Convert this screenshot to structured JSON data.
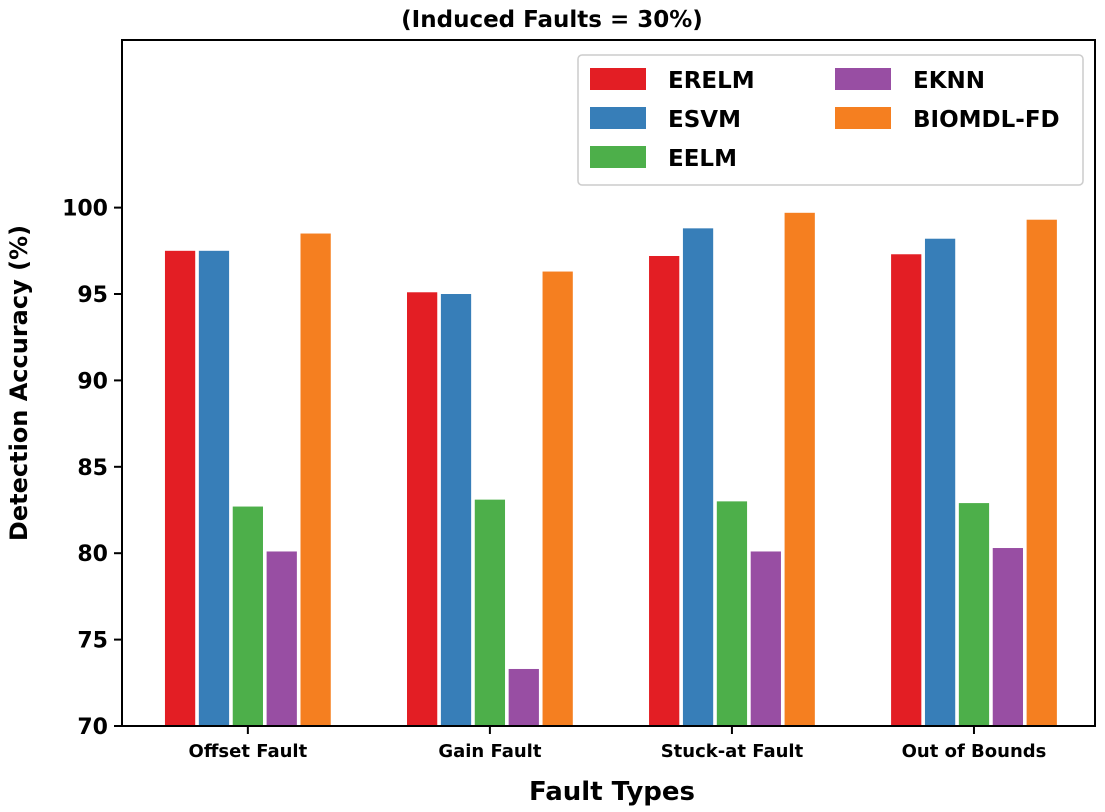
{
  "chart_data": {
    "type": "bar",
    "title": "(Induced Faults = 30%)",
    "xlabel": "Fault Types",
    "ylabel": "Detection Accuracy (%)",
    "categories": [
      "Offset Fault",
      "Gain Fault",
      "Stuck-at Fault",
      "Out of Bounds"
    ],
    "ylim": [
      70,
      109.7
    ],
    "yticks": [
      70,
      75,
      80,
      85,
      90,
      95,
      100
    ],
    "grid": false,
    "legend_placement": "top-right",
    "series": [
      {
        "name": "ERELM",
        "color": "#e31e24",
        "values": [
          97.5,
          95.1,
          97.2,
          97.3
        ]
      },
      {
        "name": "ESVM",
        "color": "#377eb8",
        "values": [
          97.5,
          95.0,
          98.8,
          98.2
        ]
      },
      {
        "name": "EELM",
        "color": "#4daf4a",
        "values": [
          82.7,
          83.1,
          83.0,
          82.9
        ]
      },
      {
        "name": "EKNN",
        "color": "#984ea3",
        "values": [
          80.1,
          73.3,
          80.1,
          80.3
        ]
      },
      {
        "name": "BIOMDL-FD",
        "color": "#f57f20",
        "values": [
          98.5,
          96.3,
          99.7,
          99.3
        ]
      }
    ]
  }
}
